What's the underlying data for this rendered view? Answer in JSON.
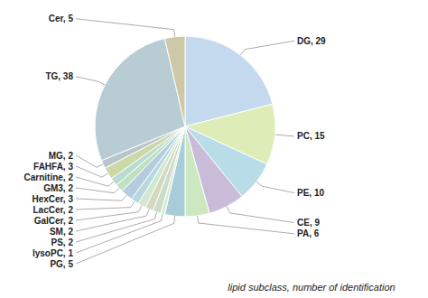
{
  "chart_data": {
    "type": "pie",
    "categories": [
      "DG",
      "PC",
      "PE",
      "CE",
      "PA",
      "PG",
      "lysoPC",
      "PS",
      "SM",
      "GalCer",
      "LacCer",
      "HexCer",
      "GM3",
      "Carnitine",
      "FAHFA",
      "MG",
      "TG",
      "Cer"
    ],
    "values": [
      29,
      15,
      10,
      9,
      6,
      5,
      1,
      2,
      2,
      2,
      2,
      3,
      2,
      2,
      3,
      2,
      38,
      5
    ],
    "value_labels": [
      "DG, 29",
      "PC, 15",
      "PE, 10",
      "CE, 9",
      "PA, 6",
      "PG, 5",
      "lysoPC, 1",
      "PS, 2",
      "SM, 2",
      "GalCer, 2",
      "LacCer, 2",
      "HexCer, 3",
      "GM3, 2",
      "Carnitine, 2",
      "FAHFA, 3",
      "MG, 2",
      "TG, 38",
      "Cer, 5"
    ],
    "data_labels": true,
    "colors": [
      "#c5d9ee",
      "#deedb8",
      "#b8dce8",
      "#c8bcd8",
      "#cce8c0",
      "#a8ccd8",
      "#d8ead8",
      "#ccdcc8",
      "#d4d8c0",
      "#d0e8d0",
      "#b8d8e0",
      "#b4cce0",
      "#c0e0c0",
      "#b8dcd0",
      "#ccd8a8",
      "#b8c4cc",
      "#b8ccd4",
      "#ccc8a8"
    ],
    "xlabel": "lipid subclass, number of identification"
  }
}
